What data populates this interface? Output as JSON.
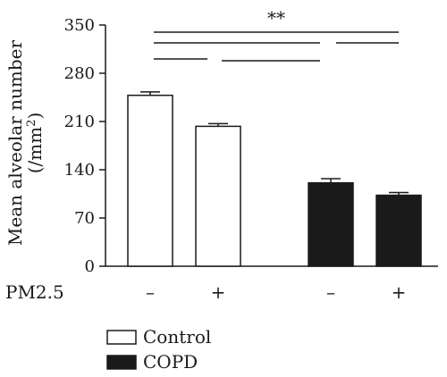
{
  "chart_data": {
    "type": "bar",
    "ylabel": "Mean alveolar number",
    "ylabel_unit": "(/mm",
    "ylabel_unit_sup": "2",
    "ylabel_unit_close": ")",
    "ylim": [
      0,
      350
    ],
    "yticks": [
      0,
      70,
      140,
      210,
      280,
      350
    ],
    "grid": false,
    "row_label": "PM2.5",
    "categories": [
      "–",
      "+",
      "–",
      "+"
    ],
    "values": [
      248,
      203,
      121,
      103
    ],
    "errors": [
      5,
      4,
      6,
      4
    ],
    "groups": [
      "Control",
      "Control",
      "COPD",
      "COPD"
    ],
    "significance": "**",
    "legend": [
      {
        "name": "Control",
        "color": "#ffffff"
      },
      {
        "name": "COPD",
        "color": "#1a1a1a"
      }
    ],
    "legend_position": "bottom-left"
  },
  "colors": {
    "axis": "#1a1a1a",
    "control_fill": "#ffffff",
    "copd_fill": "#1a1a1a"
  }
}
